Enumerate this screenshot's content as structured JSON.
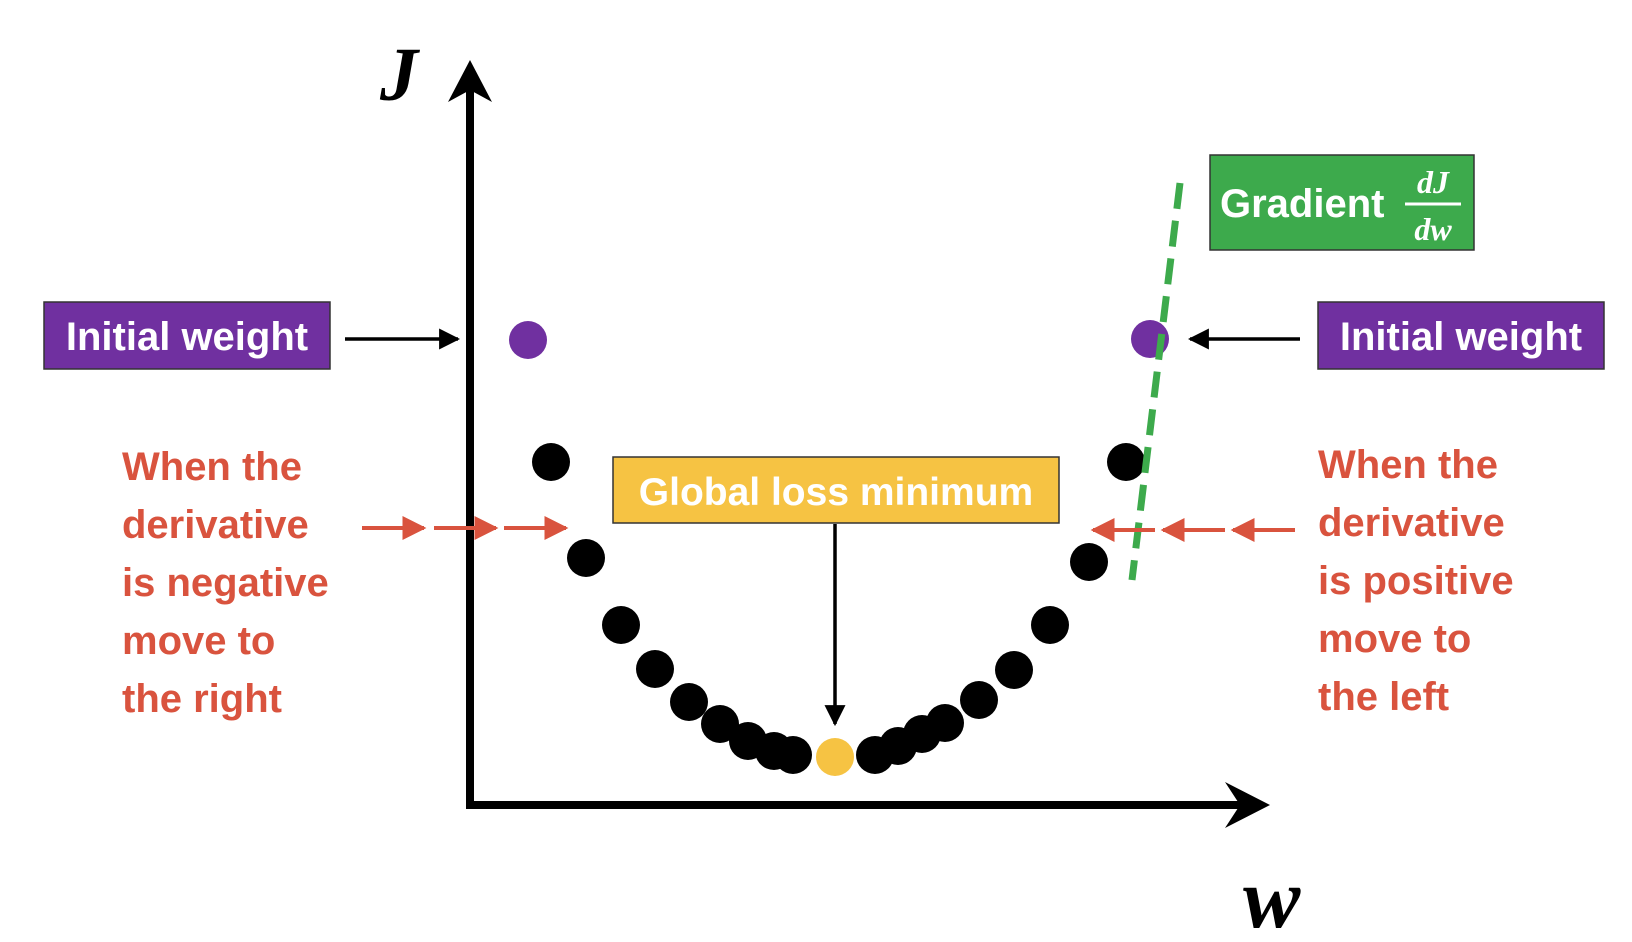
{
  "axes": {
    "y_label": "J",
    "x_label": "w"
  },
  "labels": {
    "initial_weight_left": "Initial weight",
    "initial_weight_right": "Initial weight",
    "global_minimum": "Global loss minimum",
    "gradient_word": "Gradient",
    "gradient_numerator": "dJ",
    "gradient_denominator": "dw",
    "left_note_lines": [
      "When the",
      "derivative",
      "is negative",
      "move to",
      "the right"
    ],
    "right_note_lines": [
      "When the",
      "derivative",
      "is positive",
      "move to",
      "the left"
    ]
  },
  "colors": {
    "purple": "#7030A0",
    "green": "#3DAA4C",
    "gold": "#F6C343",
    "red": "#D9533E",
    "black": "#000000"
  }
}
